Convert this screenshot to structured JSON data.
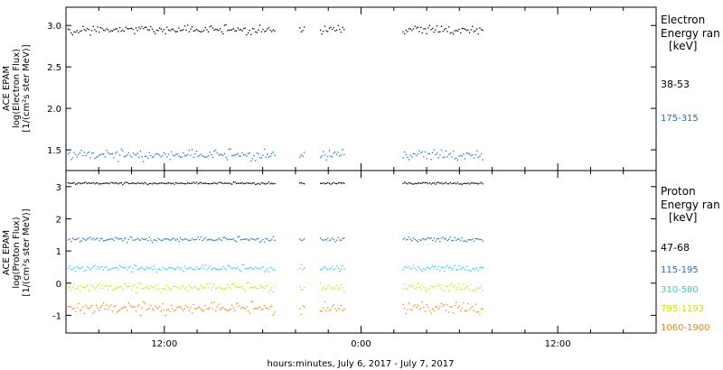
{
  "colors": {
    "black": "#000000",
    "blue": "#1a6fc0",
    "cyan": "#22d3d3",
    "yellow": "#d0e000",
    "orange": "#f08000"
  },
  "xaxis": {
    "label": "hours:minutes, July  6, 2017 - July  7, 2017",
    "range_hours": [
      -18,
      18
    ],
    "tick_hours": [
      -12,
      0,
      12
    ],
    "tick_labels": [
      "12:00",
      "0:00",
      "12:00"
    ],
    "data_gaps_hours": [
      [
        -5.3,
        -3.8
      ],
      [
        -3.5,
        -2.6
      ],
      [
        -1.0,
        2.5
      ],
      [
        7.4,
        18
      ]
    ]
  },
  "chart_data": [
    {
      "type": "scatter",
      "panel": "electron",
      "ylabel_lines": [
        "ACE EPAM",
        "log(Electron Flux)",
        "[1/(cm²s ster MeV)]"
      ],
      "ylim": [
        1.25,
        3.22
      ],
      "yticks": [
        1.5,
        2.0,
        2.5,
        3.0
      ],
      "ytick_labels": [
        "1.5",
        "2.0",
        "2.5",
        "3.0"
      ],
      "legend_title_lines": [
        "Electron",
        "Energy ran",
        "[keV]"
      ],
      "series": [
        {
          "name": "38-53",
          "color": "#000000",
          "level": 2.94,
          "spread": 0.05
        },
        {
          "name": "175-315",
          "color": "#1a6fc0",
          "level": 1.43,
          "spread": 0.06
        }
      ]
    },
    {
      "type": "scatter",
      "panel": "proton",
      "ylabel_lines": [
        "ACE EPAM",
        "log(Proton Flux)",
        "[1/(cm²s ster MeV)]"
      ],
      "ylim": [
        -1.55,
        3.5
      ],
      "yticks": [
        -1,
        0,
        1,
        2,
        3
      ],
      "ytick_labels": [
        "-1",
        "0",
        "1",
        "2",
        "3"
      ],
      "legend_title_lines": [
        "Proton",
        "Energy ran",
        "[keV]"
      ],
      "series": [
        {
          "name": "47-68",
          "color": "#000000",
          "level": 3.1,
          "spread": 0.03
        },
        {
          "name": "115-195",
          "color": "#1a6fc0",
          "level": 1.35,
          "spread": 0.07
        },
        {
          "name": "310-580",
          "color": "#22d3d3",
          "level": 0.45,
          "spread": 0.09
        },
        {
          "name": "795-1193",
          "color": "#d0e000",
          "level": -0.15,
          "spread": 0.12
        },
        {
          "name": "1060-1900",
          "color": "#f08000",
          "level": -0.8,
          "spread": 0.17
        }
      ]
    }
  ]
}
